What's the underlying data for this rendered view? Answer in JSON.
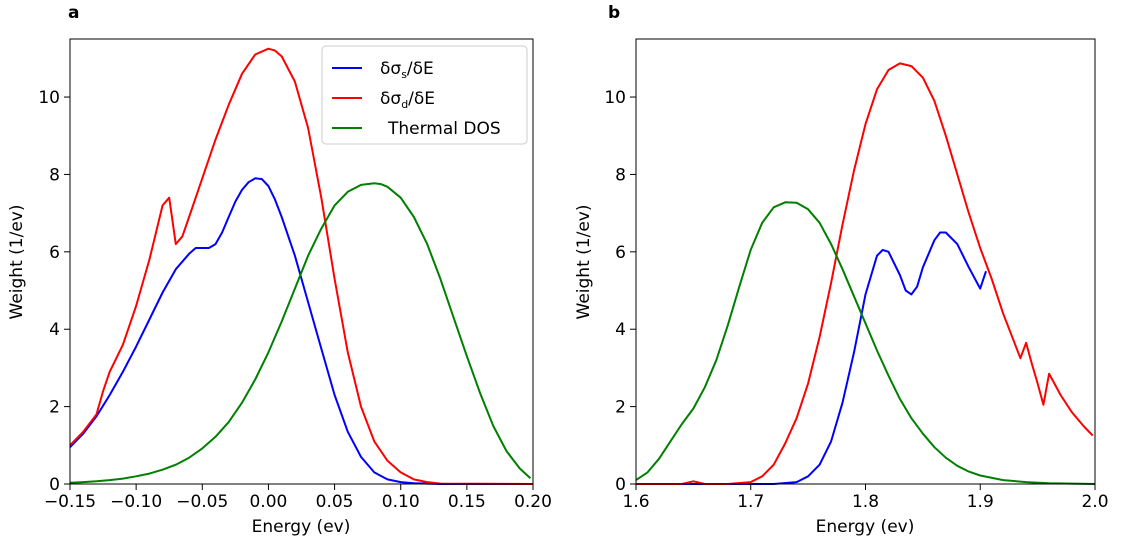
{
  "chart_data": [
    {
      "type": "line",
      "panel_label": "a",
      "xlabel": "Energy (ev)",
      "ylabel": "Weight (1/ev)",
      "xlim": [
        -0.15,
        0.2
      ],
      "ylim": [
        0,
        11.5
      ],
      "xticks": [
        -0.15,
        -0.1,
        -0.05,
        0.0,
        0.05,
        0.1,
        0.15,
        0.2
      ],
      "xtick_labels": [
        "−0.15",
        "−0.10",
        "−0.05",
        "0.00",
        "0.05",
        "0.10",
        "0.15",
        "0.20"
      ],
      "yticks": [
        0,
        2,
        4,
        6,
        8,
        10
      ],
      "ytick_labels": [
        "0",
        "2",
        "4",
        "6",
        "8",
        "10"
      ],
      "grid": false,
      "legend": {
        "placement": "top-right",
        "entries": [
          {
            "main": "δσ",
            "sub": "s",
            "tail": "/δE",
            "color": "#0000ff"
          },
          {
            "main": "δσ",
            "sub": "d",
            "tail": "/δE",
            "color": "#ff0000"
          },
          {
            "main": "Thermal DOS",
            "sub": "",
            "tail": "",
            "color": "#008000"
          }
        ]
      },
      "series": [
        {
          "color": "#0000ff",
          "x": [
            -0.15,
            -0.14,
            -0.13,
            -0.12,
            -0.11,
            -0.1,
            -0.09,
            -0.08,
            -0.07,
            -0.06,
            -0.055,
            -0.05,
            -0.045,
            -0.04,
            -0.035,
            -0.03,
            -0.025,
            -0.02,
            -0.015,
            -0.01,
            -0.005,
            0.0,
            0.005,
            0.01,
            0.02,
            0.03,
            0.04,
            0.05,
            0.06,
            0.07,
            0.08,
            0.09,
            0.1,
            0.11,
            0.12,
            0.13,
            0.2
          ],
          "y": [
            0.95,
            1.3,
            1.75,
            2.3,
            2.9,
            3.55,
            4.25,
            4.95,
            5.55,
            5.95,
            6.1,
            6.1,
            6.1,
            6.2,
            6.5,
            6.9,
            7.3,
            7.6,
            7.8,
            7.9,
            7.88,
            7.7,
            7.35,
            6.9,
            5.9,
            4.7,
            3.5,
            2.3,
            1.35,
            0.7,
            0.3,
            0.12,
            0.05,
            0.02,
            0.01,
            0.0,
            0.0
          ]
        },
        {
          "color": "#ff0000",
          "x": [
            -0.15,
            -0.14,
            -0.13,
            -0.125,
            -0.12,
            -0.11,
            -0.1,
            -0.09,
            -0.08,
            -0.075,
            -0.07,
            -0.065,
            -0.06,
            -0.05,
            -0.04,
            -0.03,
            -0.02,
            -0.01,
            0.0,
            0.005,
            0.01,
            0.02,
            0.03,
            0.04,
            0.05,
            0.06,
            0.07,
            0.08,
            0.09,
            0.1,
            0.11,
            0.12,
            0.13,
            0.2
          ],
          "y": [
            1.0,
            1.35,
            1.8,
            2.4,
            2.9,
            3.6,
            4.6,
            5.8,
            7.2,
            7.4,
            6.2,
            6.4,
            6.9,
            7.9,
            8.9,
            9.8,
            10.6,
            11.1,
            11.25,
            11.2,
            11.05,
            10.4,
            9.2,
            7.4,
            5.3,
            3.4,
            2.0,
            1.1,
            0.6,
            0.3,
            0.12,
            0.05,
            0.01,
            0.0
          ]
        },
        {
          "color": "#008000",
          "x": [
            -0.15,
            -0.14,
            -0.13,
            -0.12,
            -0.11,
            -0.1,
            -0.09,
            -0.08,
            -0.07,
            -0.06,
            -0.05,
            -0.04,
            -0.03,
            -0.02,
            -0.01,
            0.0,
            0.01,
            0.02,
            0.03,
            0.04,
            0.05,
            0.06,
            0.07,
            0.08,
            0.085,
            0.09,
            0.1,
            0.11,
            0.12,
            0.13,
            0.14,
            0.15,
            0.16,
            0.17,
            0.18,
            0.19,
            0.198
          ],
          "y": [
            0.03,
            0.05,
            0.07,
            0.1,
            0.14,
            0.2,
            0.27,
            0.37,
            0.5,
            0.68,
            0.92,
            1.22,
            1.6,
            2.1,
            2.7,
            3.4,
            4.2,
            5.05,
            5.9,
            6.6,
            7.2,
            7.55,
            7.73,
            7.77,
            7.75,
            7.68,
            7.4,
            6.9,
            6.2,
            5.3,
            4.3,
            3.3,
            2.35,
            1.5,
            0.85,
            0.4,
            0.15
          ]
        }
      ]
    },
    {
      "type": "line",
      "panel_label": "b",
      "xlabel": "Energy (ev)",
      "ylabel": "Weight (1/ev)",
      "xlim": [
        1.6,
        2.0
      ],
      "ylim": [
        0,
        11.5
      ],
      "xticks": [
        1.6,
        1.7,
        1.8,
        1.9,
        2.0
      ],
      "xtick_labels": [
        "1.6",
        "1.7",
        "1.8",
        "1.9",
        "2.0"
      ],
      "yticks": [
        0,
        2,
        4,
        6,
        8,
        10
      ],
      "ytick_labels": [
        "0",
        "2",
        "4",
        "6",
        "8",
        "10"
      ],
      "grid": false,
      "series": [
        {
          "color": "#0000ff",
          "x": [
            1.6,
            1.72,
            1.74,
            1.75,
            1.76,
            1.77,
            1.78,
            1.79,
            1.8,
            1.81,
            1.815,
            1.82,
            1.83,
            1.835,
            1.84,
            1.845,
            1.85,
            1.86,
            1.865,
            1.87,
            1.88,
            1.89,
            1.9,
            1.905
          ],
          "y": [
            0.0,
            0.0,
            0.05,
            0.2,
            0.5,
            1.1,
            2.1,
            3.4,
            4.9,
            5.9,
            6.05,
            6.0,
            5.4,
            5.0,
            4.9,
            5.1,
            5.6,
            6.3,
            6.5,
            6.5,
            6.2,
            5.6,
            5.05,
            5.5
          ]
        },
        {
          "color": "#ff0000",
          "x": [
            1.6,
            1.64,
            1.65,
            1.66,
            1.68,
            1.7,
            1.71,
            1.72,
            1.73,
            1.74,
            1.75,
            1.76,
            1.77,
            1.78,
            1.79,
            1.8,
            1.81,
            1.82,
            1.83,
            1.84,
            1.85,
            1.86,
            1.87,
            1.88,
            1.89,
            1.9,
            1.91,
            1.92,
            1.935,
            1.94,
            1.945,
            1.95,
            1.955,
            1.96,
            1.97,
            1.98,
            1.99,
            1.998
          ],
          "y": [
            0.0,
            0.0,
            0.07,
            0.0,
            0.0,
            0.05,
            0.2,
            0.5,
            1.05,
            1.7,
            2.6,
            3.8,
            5.2,
            6.7,
            8.1,
            9.3,
            10.2,
            10.7,
            10.87,
            10.8,
            10.5,
            9.9,
            9.0,
            8.0,
            7.0,
            6.1,
            5.3,
            4.4,
            3.25,
            3.65,
            3.1,
            2.6,
            2.05,
            2.85,
            2.3,
            1.85,
            1.5,
            1.25
          ]
        },
        {
          "color": "#008000",
          "x": [
            1.6,
            1.61,
            1.62,
            1.63,
            1.64,
            1.65,
            1.66,
            1.67,
            1.68,
            1.69,
            1.7,
            1.71,
            1.72,
            1.73,
            1.74,
            1.75,
            1.76,
            1.77,
            1.78,
            1.79,
            1.8,
            1.81,
            1.82,
            1.83,
            1.84,
            1.85,
            1.86,
            1.87,
            1.88,
            1.89,
            1.9,
            1.92,
            1.94,
            1.96,
            1.98,
            2.0
          ],
          "y": [
            0.1,
            0.3,
            0.65,
            1.1,
            1.55,
            1.95,
            2.5,
            3.2,
            4.1,
            5.1,
            6.05,
            6.75,
            7.15,
            7.28,
            7.27,
            7.1,
            6.75,
            6.2,
            5.55,
            4.85,
            4.15,
            3.45,
            2.8,
            2.2,
            1.7,
            1.3,
            0.95,
            0.68,
            0.47,
            0.32,
            0.22,
            0.1,
            0.05,
            0.02,
            0.01,
            0.0
          ]
        }
      ]
    }
  ]
}
